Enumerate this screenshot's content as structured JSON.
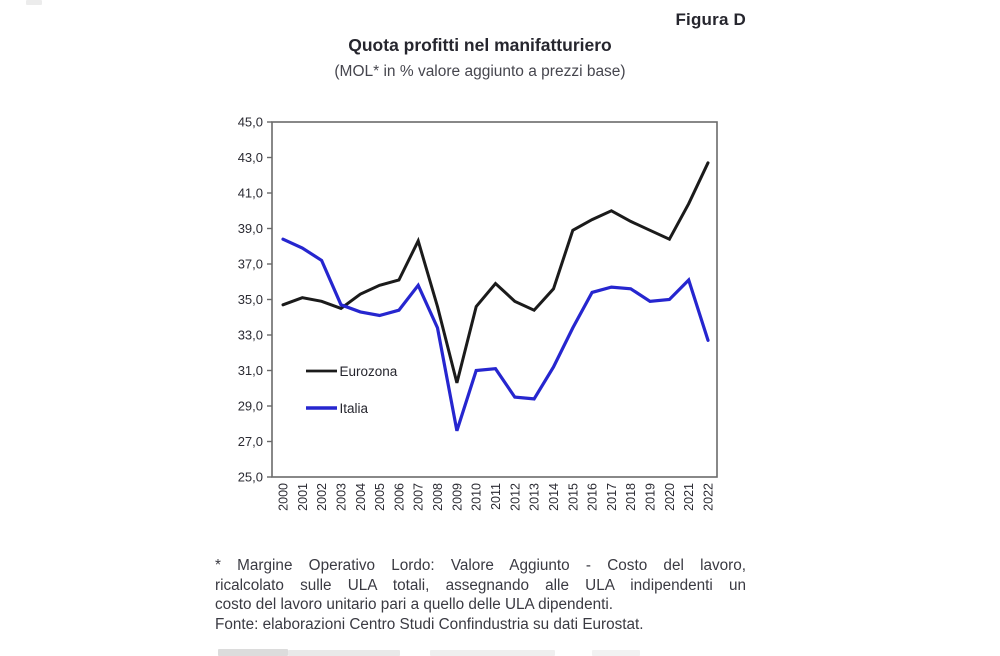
{
  "figure_label": "Figura D",
  "title": "Quota profitti nel manifatturiero",
  "subtitle": "(MOL* in % valore aggiunto a prezzi base)",
  "chart_data": {
    "type": "line",
    "x": [
      2000,
      2001,
      2002,
      2003,
      2004,
      2005,
      2006,
      2007,
      2008,
      2009,
      2010,
      2011,
      2012,
      2013,
      2014,
      2015,
      2016,
      2017,
      2018,
      2019,
      2020,
      2021,
      2022
    ],
    "series": [
      {
        "name": "Eurozona",
        "color": "#1b1b1b",
        "values": [
          34.7,
          35.1,
          34.9,
          34.5,
          35.3,
          35.8,
          36.1,
          38.3,
          34.6,
          30.3,
          34.6,
          35.9,
          34.9,
          34.4,
          35.6,
          38.9,
          39.5,
          40.0,
          39.4,
          38.9,
          38.4,
          40.4,
          42.7
        ]
      },
      {
        "name": "Italia",
        "color": "#2626cf",
        "values": [
          38.4,
          37.9,
          37.2,
          34.7,
          34.3,
          34.1,
          34.4,
          35.8,
          33.4,
          27.6,
          31.0,
          31.1,
          29.5,
          29.4,
          31.2,
          33.4,
          35.4,
          35.7,
          35.6,
          34.9,
          35.0,
          36.1,
          32.7
        ]
      }
    ],
    "ylim": [
      25.0,
      45.0
    ],
    "ytick_step": 2.0,
    "ytick_labels": [
      "45,0",
      "43,0",
      "41,0",
      "39,0",
      "37,0",
      "35,0",
      "33,0",
      "31,0",
      "29,0",
      "27,0",
      "25,0"
    ],
    "grid": false,
    "legend_position": "inside-left-middle",
    "axis_color": "#6a6a6a",
    "tick_text_color": "#2b2b33"
  },
  "footnote": {
    "line1": "* Margine Operativo Lordo: Valore Aggiunto - Costo del lavoro,",
    "line2": "ricalcolato sulle ULA totali, assegnando alle ULA indipendenti un",
    "line3": "costo del lavoro unitario pari a quello delle ULA dipendenti.",
    "line4": "Fonte: elaborazioni Centro Studi Confindustria su dati Eurostat."
  }
}
